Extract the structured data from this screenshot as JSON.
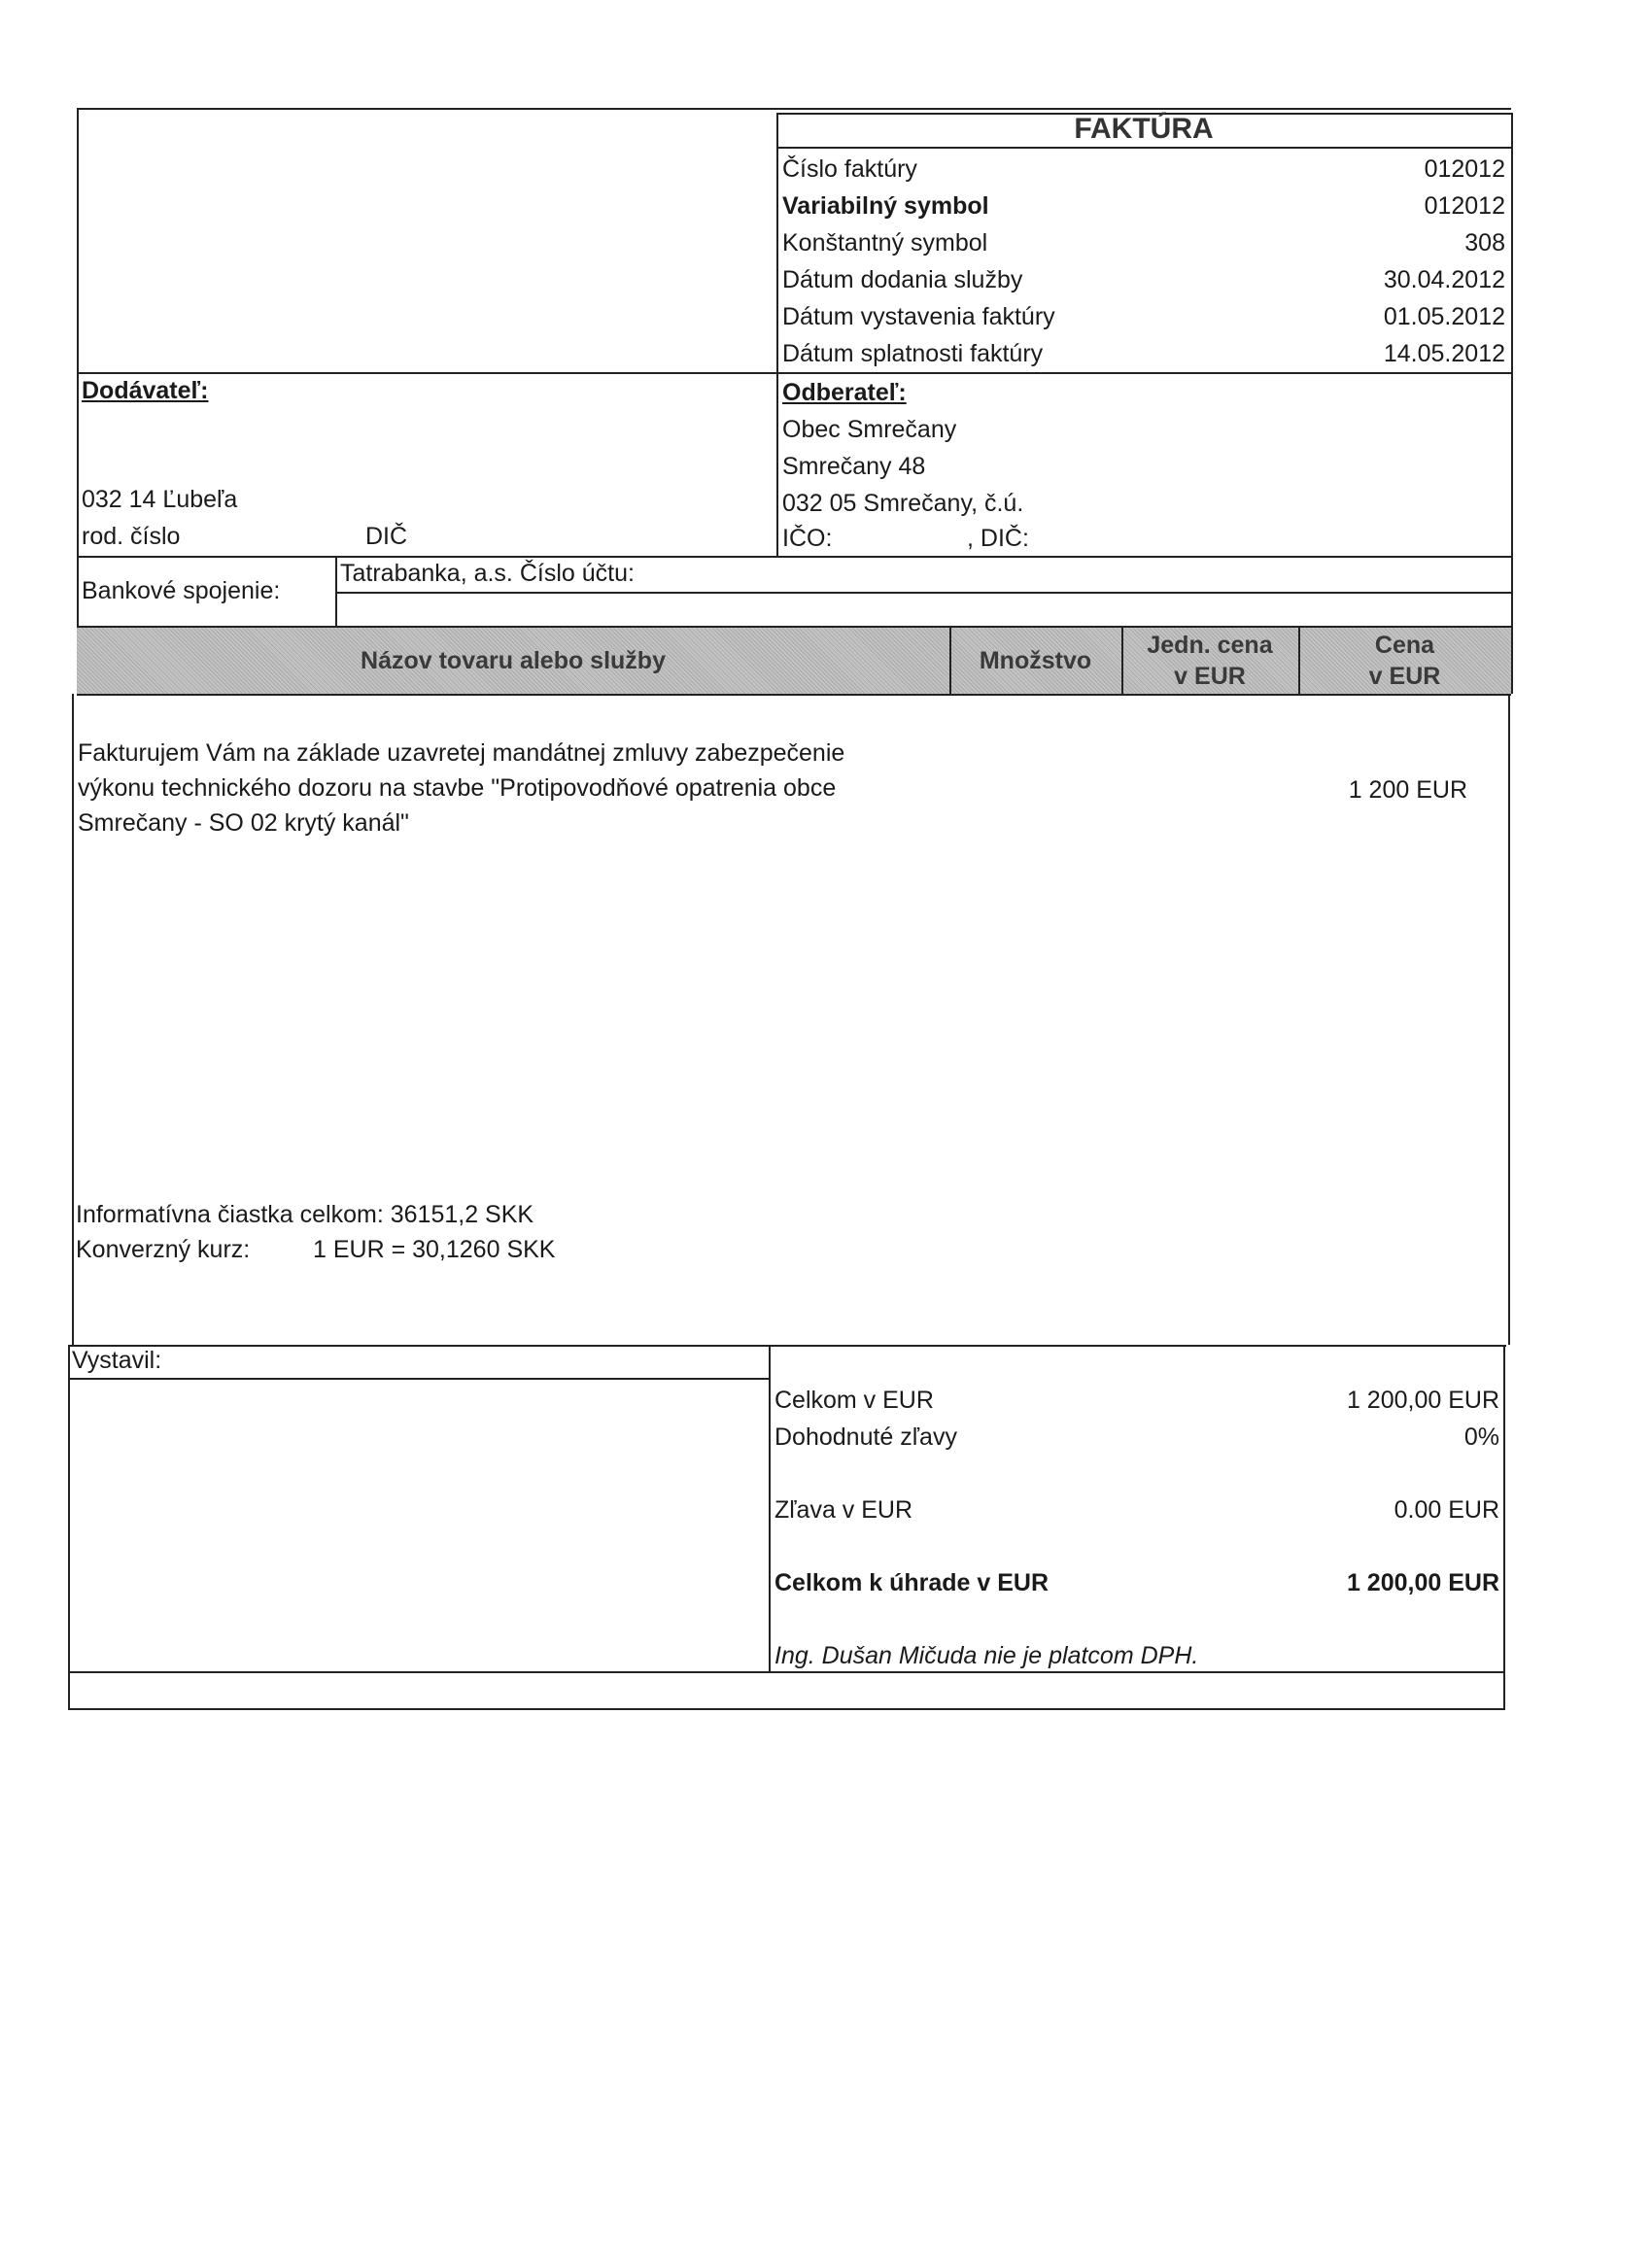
{
  "invoice": {
    "title": "FAKTÚRA",
    "fields": [
      {
        "label": "Číslo faktúry",
        "value": "012012",
        "bold": false
      },
      {
        "label": "Variabilný symbol",
        "value": "012012",
        "bold": true
      },
      {
        "label": "Konštantný symbol",
        "value": "308",
        "bold": false
      },
      {
        "label": "Dátum dodania služby",
        "value": "30.04.2012",
        "bold": false
      },
      {
        "label": "Dátum vystavenia faktúry",
        "value": "01.05.2012",
        "bold": false
      },
      {
        "label": "Dátum splatnosti faktúry",
        "value": "14.05.2012",
        "bold": false
      }
    ]
  },
  "supplier": {
    "heading": "Dodávateľ:",
    "city": "032 14 Ľubeľa",
    "birth_number_label": "rod. číslo",
    "dic_label": "DIČ"
  },
  "customer": {
    "heading": "Odberateľ:",
    "name": "Obec Smrečany",
    "street": "Smrečany 48",
    "city": "032 05 Smrečany, č.ú.",
    "ico_label": "IČO:",
    "dic_label": ", DIČ:"
  },
  "bank": {
    "label": "Bankové spojenie:",
    "value": "Tatrabanka, a.s. Číslo účtu:"
  },
  "items_header": {
    "name": "Názov tovaru alebo služby",
    "quantity": "Množstvo",
    "unit_price_1": "Jedn. cena",
    "unit_price_2": "v EUR",
    "price_1": "Cena",
    "price_2": "v EUR"
  },
  "items": [
    {
      "description_lines": [
        "Fakturujem Vám na základe uzavretej mandátnej zmluvy zabezpečenie",
        "výkonu technického dozoru na stavbe \"Protipovodňové opatrenia obce",
        "Smrečany - SO 02 krytý kanál\""
      ],
      "price": "1 200 EUR"
    }
  ],
  "info": {
    "total_skk": "Informatívna čiastka celkom: 36151,2 SKK",
    "rate_label": "Konverzný kurz:",
    "rate_value": "1 EUR  =  30,1260 SKK"
  },
  "issued_by_label": "Vystavil:",
  "totals": [
    {
      "label": "Celkom v EUR",
      "value": "1 200,00 EUR",
      "bold": false
    },
    {
      "label": "Dohodnuté zľavy",
      "value": "0%",
      "bold": false
    },
    {
      "label": "Zľava v EUR",
      "value": "0.00 EUR",
      "bold": false
    },
    {
      "label": "Celkom k úhrade v EUR",
      "value": "1 200,00 EUR",
      "bold": true
    }
  ],
  "vat_note": "Ing. Dušan Mičuda nie je platcom DPH."
}
